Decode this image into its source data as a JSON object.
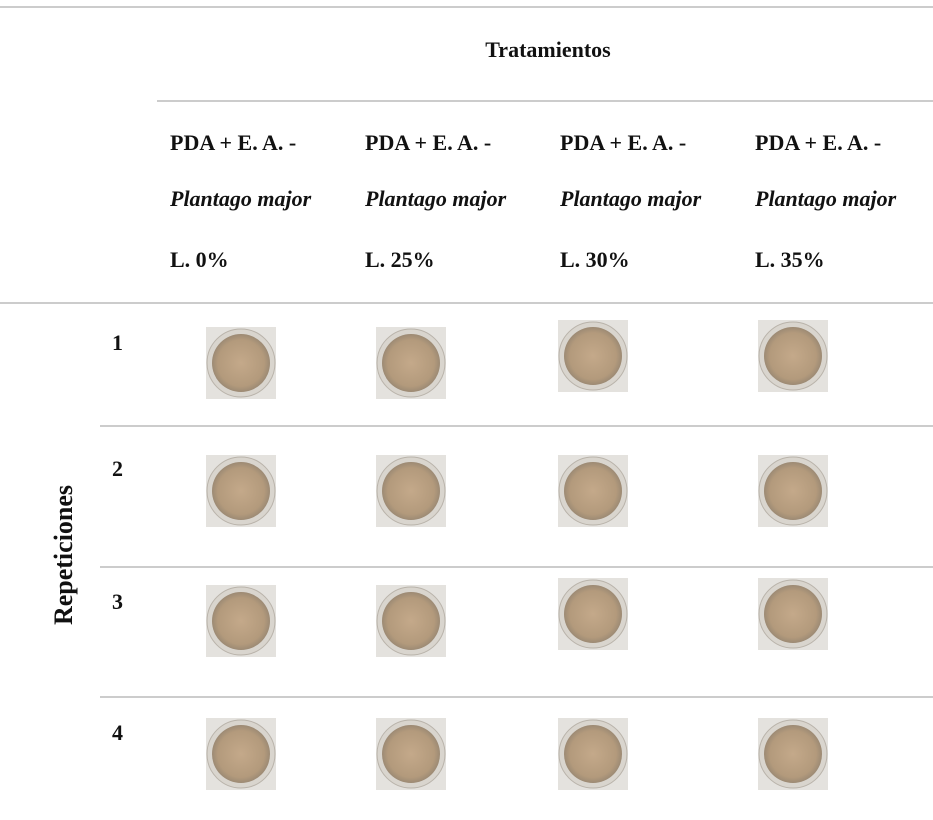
{
  "table": {
    "title": "Tratamientos",
    "row_group_label": "Repeticiones",
    "columns": [
      {
        "line1": "PDA + E. A. -",
        "species": "Plantago major",
        "line3": "L. 0%"
      },
      {
        "line1": "PDA + E. A. -",
        "species": "Plantago major",
        "line3": "L. 25%"
      },
      {
        "line1": "PDA + E. A. -",
        "species": "Plantago major",
        "line3": "L. 30%"
      },
      {
        "line1": "PDA + E. A. -",
        "species": "Plantago major",
        "line3": "L. 35%"
      }
    ],
    "rows": [
      "1",
      "2",
      "3",
      "4"
    ]
  }
}
